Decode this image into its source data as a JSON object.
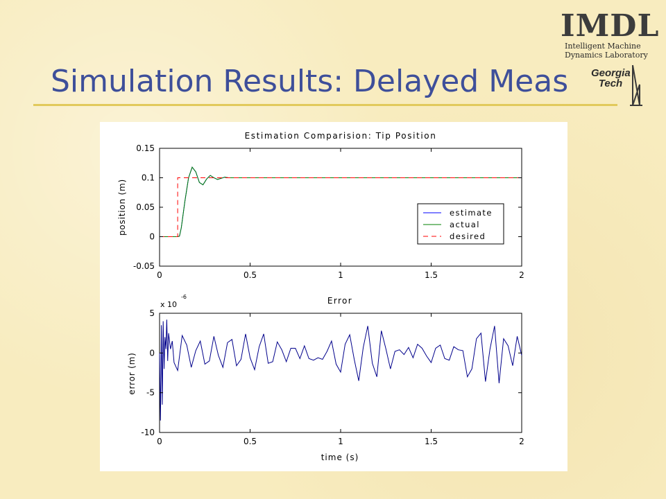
{
  "slide": {
    "title": "Simulation Results: Delayed Meas",
    "logo_imdl": "IMDL",
    "logo_imdl_line1": "Intelligent Machine",
    "logo_imdl_line2": "Dynamics Laboratory",
    "logo_gt_line1": "Georgia",
    "logo_gt_line2": "Tech"
  },
  "chart_data": [
    {
      "type": "line",
      "title": "Estimation Comparision: Tip Position",
      "xlabel": "",
      "ylabel": "position (m)",
      "xlim": [
        0,
        2
      ],
      "ylim": [
        -0.05,
        0.15
      ],
      "xticks": [
        0,
        0.5,
        1,
        1.5,
        2
      ],
      "xtick_labels": [
        "0",
        "0.5",
        "1",
        "1.5",
        "2"
      ],
      "yticks": [
        -0.05,
        0,
        0.05,
        0.1,
        0.15
      ],
      "ytick_labels": [
        "-0.05",
        "0",
        "0.05",
        "0.1",
        "0.15"
      ],
      "grid": false,
      "legend": "right",
      "series": [
        {
          "name": "estimate",
          "color": "#0000ff",
          "style": "solid",
          "x": [
            0,
            0.1,
            0.11,
            0.12,
            0.14,
            0.16,
            0.18,
            0.2,
            0.22,
            0.24,
            0.26,
            0.28,
            0.3,
            0.32,
            0.34,
            0.36,
            0.38,
            0.4,
            0.42,
            0.5,
            2
          ],
          "y": [
            0,
            0,
            0.001,
            0.015,
            0.06,
            0.1,
            0.118,
            0.11,
            0.092,
            0.088,
            0.098,
            0.104,
            0.1,
            0.097,
            0.099,
            0.101,
            0.1,
            0.1,
            0.1,
            0.1,
            0.1
          ]
        },
        {
          "name": "actual",
          "color": "#008000",
          "style": "solid",
          "x": [
            0,
            0.1,
            0.11,
            0.12,
            0.14,
            0.16,
            0.18,
            0.2,
            0.22,
            0.24,
            0.26,
            0.28,
            0.3,
            0.32,
            0.34,
            0.36,
            0.38,
            0.4,
            0.42,
            0.5,
            2
          ],
          "y": [
            0,
            0,
            0.001,
            0.015,
            0.06,
            0.1,
            0.118,
            0.11,
            0.092,
            0.088,
            0.098,
            0.104,
            0.1,
            0.097,
            0.099,
            0.101,
            0.1,
            0.1,
            0.1,
            0.1,
            0.1
          ]
        },
        {
          "name": "desired",
          "color": "#ff0000",
          "style": "dashed",
          "x": [
            0,
            0.1,
            0.1,
            2
          ],
          "y": [
            0,
            0,
            0.1,
            0.1
          ]
        }
      ]
    },
    {
      "type": "line",
      "title": "Error",
      "xlabel": "time (s)",
      "ylabel": "error (m)",
      "y_multiplier": "x 10",
      "y_multiplier_exponent": "-6",
      "xlim": [
        0,
        2
      ],
      "ylim": [
        -10,
        5
      ],
      "xticks": [
        0,
        0.5,
        1,
        1.5,
        2
      ],
      "xtick_labels": [
        "0",
        "0.5",
        "1",
        "1.5",
        "2"
      ],
      "yticks": [
        -10,
        -5,
        0,
        5
      ],
      "ytick_labels": [
        "-10",
        "-5",
        "0",
        "5"
      ],
      "grid": false,
      "series": [
        {
          "name": "error",
          "color": "#00008b",
          "style": "solid",
          "x": [
            0,
            0.005,
            0.01,
            0.015,
            0.02,
            0.025,
            0.03,
            0.035,
            0.04,
            0.045,
            0.05,
            0.06,
            0.07,
            0.08,
            0.1,
            0.125,
            0.15,
            0.175,
            0.2,
            0.225,
            0.25,
            0.275,
            0.3,
            0.325,
            0.35,
            0.375,
            0.4,
            0.425,
            0.45,
            0.475,
            0.5,
            0.525,
            0.55,
            0.575,
            0.6,
            0.625,
            0.65,
            0.675,
            0.7,
            0.725,
            0.75,
            0.775,
            0.8,
            0.825,
            0.85,
            0.875,
            0.9,
            0.925,
            0.95,
            0.975,
            1.0,
            1.025,
            1.05,
            1.075,
            1.1,
            1.125,
            1.15,
            1.175,
            1.2,
            1.225,
            1.25,
            1.275,
            1.3,
            1.325,
            1.35,
            1.375,
            1.4,
            1.425,
            1.45,
            1.475,
            1.5,
            1.525,
            1.55,
            1.575,
            1.6,
            1.625,
            1.65,
            1.675,
            1.7,
            1.725,
            1.75,
            1.775,
            1.8,
            1.825,
            1.85,
            1.875,
            1.9,
            1.925,
            1.95,
            1.975,
            2.0
          ],
          "y": [
            0,
            -8.5,
            3.5,
            -6.5,
            4,
            -2,
            2,
            0.5,
            4.2,
            -1,
            2.5,
            0.5,
            1.5,
            -1.2,
            -2.2,
            2.2,
            1,
            -1.8,
            0.3,
            1.5,
            -1.4,
            -1.0,
            2.1,
            -0.3,
            -1.8,
            1.3,
            1.7,
            -1.6,
            -0.8,
            2.4,
            -0.6,
            -2.1,
            0.8,
            2.4,
            -1.3,
            -1.1,
            1.4,
            0.4,
            -1.1,
            0.6,
            0.6,
            -0.7,
            0.9,
            -0.7,
            -0.9,
            -0.6,
            -0.8,
            0.2,
            1.5,
            -1.4,
            -2.4,
            1.1,
            2.3,
            -0.8,
            -3.5,
            0.7,
            3.4,
            -1.3,
            -3.0,
            2.8,
            0.5,
            -2.0,
            0.2,
            0.4,
            -0.2,
            0.7,
            -0.6,
            1.1,
            0.6,
            -0.4,
            -1.2,
            0.6,
            1.0,
            -0.7,
            -0.9,
            0.8,
            0.4,
            0.3,
            -3.0,
            -2.0,
            1.8,
            2.5,
            -3.6,
            0.5,
            3.4,
            -3.8,
            1.8,
            0.9,
            -1.6,
            2.1,
            -0.3
          ]
        }
      ]
    }
  ]
}
